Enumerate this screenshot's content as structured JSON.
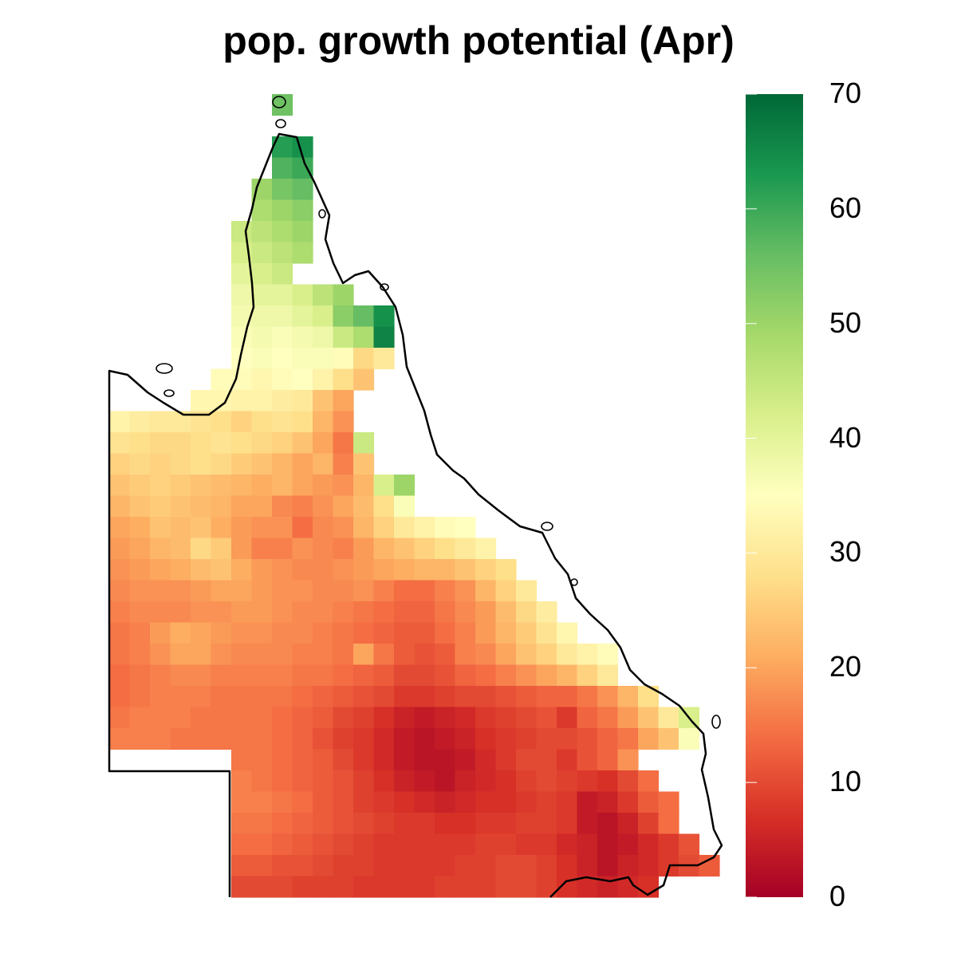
{
  "chart_data": {
    "type": "heatmap",
    "title": "pop. growth potential (Apr)",
    "colorbar": {
      "range": [
        0,
        70
      ],
      "ticks": [
        "0",
        "10",
        "20",
        "30",
        "40",
        "50",
        "60",
        "70"
      ],
      "palette": [
        "#a50026",
        "#d73027",
        "#f46d43",
        "#fdae61",
        "#fee08b",
        "#ffffbf",
        "#d9ef8b",
        "#a6d96a",
        "#66bd63",
        "#1a9850",
        "#006837"
      ]
    },
    "grid": {
      "columns": 31,
      "rows": 38,
      "cell_value_field": "growth potential",
      "rows_data": [
        {
          "r": 0,
          "c0": 8,
          "vals": [
            55
          ]
        },
        {
          "r": 2,
          "c0": 8,
          "vals": [
            62,
            64
          ]
        },
        {
          "r": 3,
          "c0": 8,
          "vals": [
            58,
            60
          ]
        },
        {
          "r": 4,
          "c0": 7,
          "vals": [
            50,
            54,
            56
          ]
        },
        {
          "r": 5,
          "c0": 7,
          "vals": [
            48,
            50,
            52
          ]
        },
        {
          "r": 6,
          "c0": 6,
          "vals": [
            44,
            46,
            48,
            50
          ]
        },
        {
          "r": 7,
          "c0": 6,
          "vals": [
            42,
            44,
            46,
            48
          ]
        },
        {
          "r": 8,
          "c0": 6,
          "vals": [
            40,
            42,
            44
          ]
        },
        {
          "r": 9,
          "c0": 6,
          "vals": [
            38,
            40,
            40,
            42,
            46,
            50
          ]
        },
        {
          "r": 10,
          "c0": 6,
          "vals": [
            37,
            38,
            38,
            40,
            42,
            52,
            56,
            64
          ]
        },
        {
          "r": 11,
          "c0": 6,
          "vals": [
            36,
            37,
            36,
            37,
            38,
            44,
            48,
            66
          ]
        },
        {
          "r": 12,
          "c0": 6,
          "vals": [
            35,
            36,
            35,
            36,
            36,
            34,
            27,
            30
          ]
        },
        {
          "r": 13,
          "c0": 5,
          "vals": [
            34,
            34,
            33,
            34,
            35,
            32,
            28,
            24
          ]
        },
        {
          "r": 14,
          "c0": 4,
          "vals": [
            33,
            33,
            32,
            32,
            31,
            30,
            24,
            20
          ]
        },
        {
          "r": 15,
          "c0": 0,
          "vals": [
            32,
            31,
            30,
            30,
            29,
            28,
            26,
            28,
            29,
            28,
            22,
            18
          ]
        },
        {
          "r": 16,
          "c0": 0,
          "vals": [
            29,
            28,
            27,
            27,
            28,
            29,
            28,
            27,
            26,
            24,
            20,
            15,
            44
          ]
        },
        {
          "r": 17,
          "c0": 0,
          "vals": [
            26,
            27,
            26,
            27,
            28,
            27,
            25,
            24,
            22,
            20,
            22,
            16,
            24
          ]
        },
        {
          "r": 18,
          "c0": 0,
          "vals": [
            24,
            25,
            26,
            25,
            24,
            23,
            22,
            21,
            22,
            20,
            19,
            18,
            22,
            42,
            50
          ]
        },
        {
          "r": 19,
          "c0": 0,
          "vals": [
            22,
            24,
            25,
            24,
            23,
            22,
            20,
            20,
            17,
            16,
            18,
            20,
            23,
            28,
            36
          ]
        },
        {
          "r": 20,
          "c0": 0,
          "vals": [
            20,
            21,
            24,
            23,
            24,
            21,
            19,
            18,
            18,
            14,
            17,
            18,
            22,
            26,
            30,
            32,
            34,
            35
          ]
        },
        {
          "r": 21,
          "c0": 0,
          "vals": [
            19,
            20,
            22,
            23,
            27,
            25,
            19,
            16,
            16,
            18,
            17,
            16,
            19,
            22,
            24,
            26,
            28,
            30,
            32
          ]
        },
        {
          "r": 22,
          "c0": 0,
          "vals": [
            18,
            19,
            20,
            21,
            23,
            24,
            21,
            19,
            18,
            17,
            17,
            18,
            19,
            20,
            21,
            22,
            22,
            24,
            26,
            28
          ]
        },
        {
          "r": 23,
          "c0": 0,
          "vals": [
            17,
            18,
            18,
            18,
            19,
            20,
            20,
            19,
            18,
            18,
            17,
            17,
            18,
            16,
            14,
            14,
            16,
            18,
            22,
            26,
            30
          ]
        },
        {
          "r": 24,
          "c0": 0,
          "vals": [
            16,
            17,
            17,
            17,
            18,
            18,
            19,
            19,
            18,
            17,
            17,
            16,
            15,
            14,
            13,
            13,
            15,
            17,
            19,
            23,
            27,
            31
          ]
        },
        {
          "r": 25,
          "c0": 0,
          "vals": [
            15,
            16,
            19,
            21,
            20,
            19,
            18,
            18,
            17,
            17,
            16,
            15,
            14,
            13,
            12,
            12,
            14,
            16,
            19,
            22,
            25,
            29,
            33
          ]
        },
        {
          "r": 26,
          "c0": 0,
          "vals": [
            15,
            16,
            18,
            20,
            20,
            18,
            17,
            17,
            17,
            16,
            16,
            15,
            20,
            15,
            12,
            11,
            12,
            16,
            17,
            20,
            24,
            26,
            30,
            32,
            34
          ]
        },
        {
          "r": 27,
          "c0": 0,
          "vals": [
            14,
            15,
            16,
            17,
            17,
            16,
            16,
            16,
            16,
            15,
            15,
            14,
            13,
            12,
            10,
            10,
            11,
            13,
            14,
            16,
            18,
            20,
            22,
            26,
            30
          ]
        },
        {
          "r": 28,
          "c0": 0,
          "vals": [
            14,
            15,
            16,
            16,
            16,
            15,
            15,
            15,
            15,
            14,
            13,
            12,
            11,
            10,
            8,
            8,
            9,
            10,
            10,
            11,
            12,
            13,
            13,
            15,
            18,
            22,
            28
          ]
        },
        {
          "r": 29,
          "c0": 0,
          "vals": [
            15,
            16,
            16,
            16,
            15,
            15,
            15,
            15,
            14,
            13,
            12,
            10,
            9,
            7,
            5,
            4,
            5,
            6,
            8,
            9,
            10,
            11,
            8,
            13,
            15,
            19,
            24,
            30,
            42
          ]
        },
        {
          "r": 30,
          "c0": 0,
          "vals": [
            16,
            16,
            16,
            15,
            15,
            15,
            15,
            15,
            14,
            13,
            11,
            9,
            8,
            6,
            4,
            3,
            4,
            5,
            7,
            8,
            9,
            10,
            10,
            11,
            13,
            15,
            20,
            24,
            36
          ]
        },
        {
          "r": 31,
          "c0": 6,
          "vals": [
            15,
            15,
            14,
            13,
            12,
            10,
            8,
            6,
            4,
            3,
            3,
            4,
            6,
            8,
            10,
            10,
            8,
            11,
            13,
            18
          ]
        },
        {
          "r": 32,
          "c0": 6,
          "vals": [
            16,
            15,
            14,
            13,
            12,
            11,
            9,
            7,
            5,
            4,
            3,
            5,
            6,
            7,
            9,
            10,
            9,
            8,
            7,
            10,
            14
          ]
        },
        {
          "r": 33,
          "c0": 6,
          "vals": [
            16,
            16,
            15,
            14,
            12,
            11,
            9,
            8,
            7,
            6,
            5,
            6,
            7,
            7,
            8,
            9,
            8,
            4,
            5,
            8,
            12,
            14
          ]
        },
        {
          "r": 34,
          "c0": 6,
          "vals": [
            15,
            15,
            14,
            13,
            12,
            11,
            10,
            9,
            8,
            8,
            7,
            7,
            8,
            8,
            9,
            9,
            8,
            4,
            3,
            5,
            9,
            14
          ]
        },
        {
          "r": 35,
          "c0": 6,
          "vals": [
            14,
            14,
            13,
            12,
            11,
            10,
            9,
            8,
            8,
            8,
            8,
            8,
            9,
            9,
            8,
            8,
            6,
            5,
            3,
            4,
            6,
            8,
            11
          ]
        },
        {
          "r": 36,
          "c0": 6,
          "vals": [
            12,
            12,
            11,
            11,
            10,
            9,
            9,
            8,
            8,
            8,
            8,
            9,
            9,
            10,
            10,
            9,
            7,
            5,
            3,
            5,
            6,
            8,
            10,
            12
          ]
        },
        {
          "r": 37,
          "c0": 6,
          "vals": [
            10,
            10,
            10,
            9,
            9,
            9,
            8,
            8,
            8,
            8,
            9,
            9,
            9,
            10,
            10,
            9,
            7,
            6,
            5,
            6,
            7
          ]
        }
      ]
    }
  }
}
